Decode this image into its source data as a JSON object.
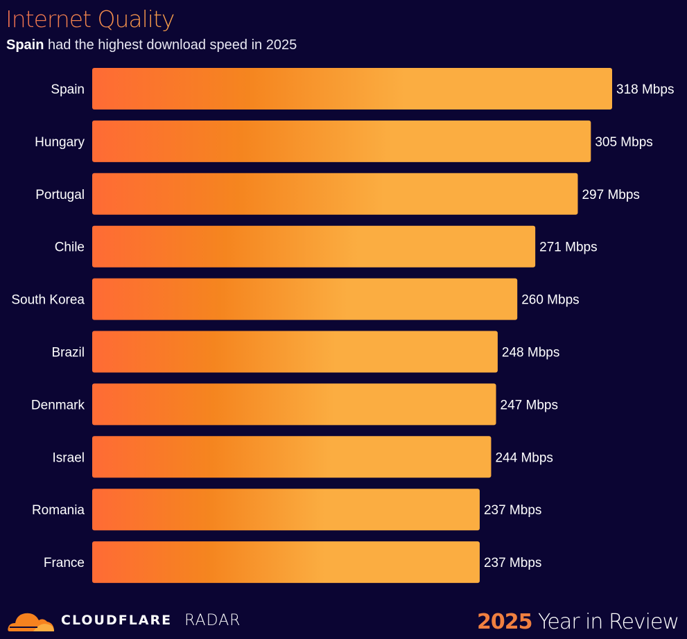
{
  "header": {
    "title": "Internet Quality",
    "subtitle_bold": "Spain",
    "subtitle_rest": " had the highest download speed in 2025"
  },
  "footer": {
    "brand": "CLOUDFLARE",
    "product": "RADAR",
    "year": "2025",
    "tagline": " Year in Review"
  },
  "colors": {
    "background": "#0b0533",
    "bar_start": "#ff6b35",
    "bar_mid": "#f5851f",
    "bar_end": "#fbad41"
  },
  "chart_data": {
    "type": "bar",
    "orientation": "horizontal",
    "unit": "Mbps",
    "categories": [
      "Spain",
      "Hungary",
      "Portugal",
      "Chile",
      "South Korea",
      "Brazil",
      "Denmark",
      "Israel",
      "Romania",
      "France"
    ],
    "values": [
      318,
      305,
      297,
      271,
      260,
      248,
      247,
      244,
      237,
      237
    ],
    "data_labels": [
      "318 Mbps",
      "305 Mbps",
      "297 Mbps",
      "271 Mbps",
      "260 Mbps",
      "248 Mbps",
      "247 Mbps",
      "244 Mbps",
      "237 Mbps",
      "237 Mbps"
    ],
    "grid": false
  }
}
